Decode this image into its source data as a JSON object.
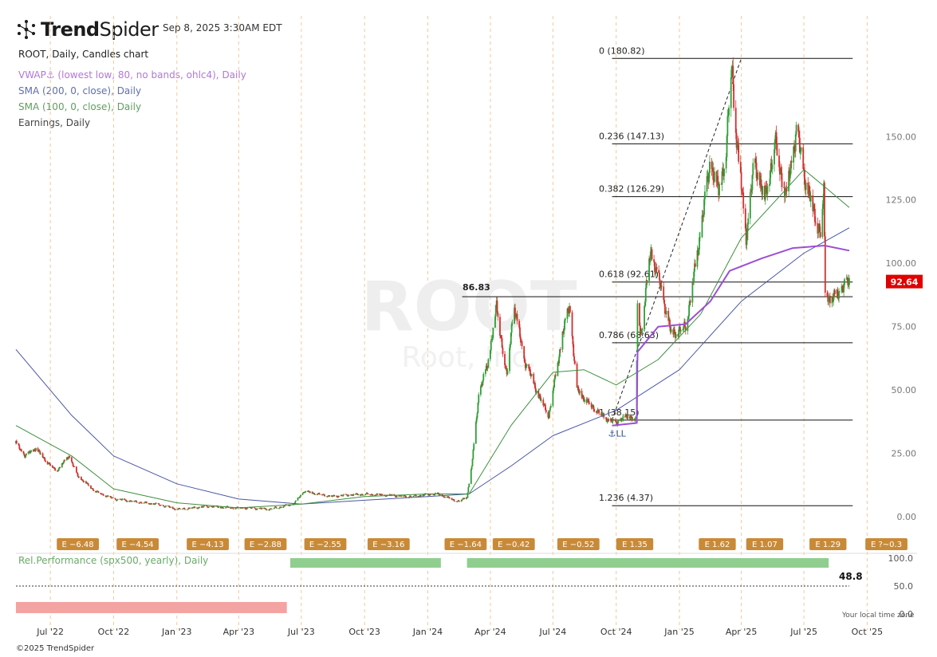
{
  "brand": {
    "name_bold": "Trend",
    "name_regular": "Spider",
    "timestamp": "Sep 8, 2025 3:30AM EDT",
    "copyright": "©2025 TrendSpider"
  },
  "legend": {
    "chart_title": "ROOT, Daily, Candles chart",
    "vwap": "VWAP⚓ (lowest low, 80, no bands, ohlc4), Daily",
    "sma200": "SMA (200, 0, close), Daily",
    "sma100": "SMA (100, 0, close), Daily",
    "earnings": "Earnings, Daily"
  },
  "colors": {
    "up": "#2e9e35",
    "down": "#d32f2f",
    "vwap": "#9b4fd6",
    "sma200": "#4a56a6",
    "sma100": "#3f8f3f",
    "earnings_badge": "#c98a37",
    "last_price": "#e00000",
    "rel_perf_pos": "#8fce8f",
    "rel_perf_neg": "#f4a3a3"
  },
  "watermark": {
    "symbol": "ROOT",
    "name": "Root, Inc."
  },
  "chart_data": {
    "type": "candlestick",
    "symbol": "ROOT",
    "interval": "Daily",
    "x_tick_labels": [
      "Jul '22",
      "Oct '22",
      "Jan '23",
      "Apr '23",
      "Jul '23",
      "Oct '23",
      "Jan '24",
      "Apr '24",
      "Jul '24",
      "Oct '24",
      "Jan '25",
      "Apr '25",
      "Jul '25",
      "Oct '25"
    ],
    "x_tick_dates": [
      "2022-07-01",
      "2022-10-01",
      "2023-01-01",
      "2023-04-01",
      "2023-07-01",
      "2023-10-01",
      "2024-01-01",
      "2024-04-01",
      "2024-07-01",
      "2024-10-01",
      "2025-01-01",
      "2025-04-01",
      "2025-07-01",
      "2025-10-01"
    ],
    "y_tick_labels": [
      "0.00",
      "25.00",
      "50.00",
      "75.00",
      "100.00",
      "125.00",
      "150.00"
    ],
    "y_ticks": [
      0,
      25,
      50,
      75,
      100,
      125,
      150
    ],
    "ylim": [
      -5,
      185
    ],
    "xlim": [
      "2022-05-12",
      "2025-11-02"
    ],
    "last_price": 92.64,
    "last_price_label": "92.64",
    "price_path": [
      {
        "date": "2022-05-12",
        "close": 29
      },
      {
        "date": "2022-05-25",
        "close": 24
      },
      {
        "date": "2022-06-10",
        "close": 27
      },
      {
        "date": "2022-06-25",
        "close": 22
      },
      {
        "date": "2022-07-10",
        "close": 18
      },
      {
        "date": "2022-07-28",
        "close": 24
      },
      {
        "date": "2022-08-10",
        "close": 16
      },
      {
        "date": "2022-09-05",
        "close": 10
      },
      {
        "date": "2022-10-01",
        "close": 7
      },
      {
        "date": "2022-11-01",
        "close": 6
      },
      {
        "date": "2022-12-01",
        "close": 5
      },
      {
        "date": "2023-01-01",
        "close": 3
      },
      {
        "date": "2023-02-15",
        "close": 4
      },
      {
        "date": "2023-04-01",
        "close": 3.5
      },
      {
        "date": "2023-05-15",
        "close": 3
      },
      {
        "date": "2023-06-20",
        "close": 5
      },
      {
        "date": "2023-07-05",
        "close": 10
      },
      {
        "date": "2023-08-15",
        "close": 8
      },
      {
        "date": "2023-10-01",
        "close": 9
      },
      {
        "date": "2023-12-01",
        "close": 8
      },
      {
        "date": "2024-01-15",
        "close": 9
      },
      {
        "date": "2024-02-15",
        "close": 6
      },
      {
        "date": "2024-02-27",
        "close": 8
      },
      {
        "date": "2024-03-05",
        "close": 20
      },
      {
        "date": "2024-03-15",
        "close": 48
      },
      {
        "date": "2024-03-28",
        "close": 60
      },
      {
        "date": "2024-04-10",
        "close": 83
      },
      {
        "date": "2024-04-25",
        "close": 55
      },
      {
        "date": "2024-05-05",
        "close": 84
      },
      {
        "date": "2024-05-20",
        "close": 62
      },
      {
        "date": "2024-06-10",
        "close": 48
      },
      {
        "date": "2024-06-25",
        "close": 40
      },
      {
        "date": "2024-07-15",
        "close": 72
      },
      {
        "date": "2024-07-25",
        "close": 83
      },
      {
        "date": "2024-08-05",
        "close": 50
      },
      {
        "date": "2024-08-25",
        "close": 44
      },
      {
        "date": "2024-09-20",
        "close": 38
      },
      {
        "date": "2024-09-30",
        "close": 37
      },
      {
        "date": "2024-10-20",
        "close": 40
      },
      {
        "date": "2024-10-30",
        "close": 38
      },
      {
        "date": "2024-11-01",
        "close": 85
      },
      {
        "date": "2024-11-06",
        "close": 72
      },
      {
        "date": "2024-11-20",
        "close": 105
      },
      {
        "date": "2024-12-05",
        "close": 90
      },
      {
        "date": "2024-12-20",
        "close": 72
      },
      {
        "date": "2025-01-10",
        "close": 75
      },
      {
        "date": "2025-01-25",
        "close": 100
      },
      {
        "date": "2025-02-15",
        "close": 140
      },
      {
        "date": "2025-02-27",
        "close": 128
      },
      {
        "date": "2025-03-10",
        "close": 145
      },
      {
        "date": "2025-03-18",
        "close": 179
      },
      {
        "date": "2025-03-25",
        "close": 150
      },
      {
        "date": "2025-04-08",
        "close": 110
      },
      {
        "date": "2025-04-20",
        "close": 140
      },
      {
        "date": "2025-05-05",
        "close": 125
      },
      {
        "date": "2025-05-20",
        "close": 148
      },
      {
        "date": "2025-06-05",
        "close": 126
      },
      {
        "date": "2025-06-20",
        "close": 152
      },
      {
        "date": "2025-07-05",
        "close": 130
      },
      {
        "date": "2025-07-25",
        "close": 112
      },
      {
        "date": "2025-07-30",
        "close": 128
      },
      {
        "date": "2025-08-01",
        "close": 90
      },
      {
        "date": "2025-08-10",
        "close": 85
      },
      {
        "date": "2025-08-25",
        "close": 90
      },
      {
        "date": "2025-09-05",
        "close": 92.64
      }
    ],
    "sma200_path": [
      {
        "date": "2022-05-12",
        "close": 66
      },
      {
        "date": "2022-08-01",
        "close": 40
      },
      {
        "date": "2022-10-01",
        "close": 24
      },
      {
        "date": "2023-01-01",
        "close": 13
      },
      {
        "date": "2023-04-01",
        "close": 7
      },
      {
        "date": "2023-07-01",
        "close": 5
      },
      {
        "date": "2023-10-01",
        "close": 6.5
      },
      {
        "date": "2024-01-01",
        "close": 8
      },
      {
        "date": "2024-03-01",
        "close": 9
      },
      {
        "date": "2024-05-01",
        "close": 20
      },
      {
        "date": "2024-07-01",
        "close": 32
      },
      {
        "date": "2024-10-01",
        "close": 42
      },
      {
        "date": "2025-01-01",
        "close": 58
      },
      {
        "date": "2025-04-01",
        "close": 85
      },
      {
        "date": "2025-07-01",
        "close": 104
      },
      {
        "date": "2025-09-05",
        "close": 114
      }
    ],
    "sma100_path": [
      {
        "date": "2022-05-12",
        "close": 36
      },
      {
        "date": "2022-08-01",
        "close": 24
      },
      {
        "date": "2022-10-01",
        "close": 11
      },
      {
        "date": "2023-01-01",
        "close": 5.5
      },
      {
        "date": "2023-04-01",
        "close": 3.5
      },
      {
        "date": "2023-07-01",
        "close": 5
      },
      {
        "date": "2023-10-01",
        "close": 8
      },
      {
        "date": "2024-01-01",
        "close": 9
      },
      {
        "date": "2024-03-01",
        "close": 9
      },
      {
        "date": "2024-05-01",
        "close": 36
      },
      {
        "date": "2024-07-01",
        "close": 57
      },
      {
        "date": "2024-08-15",
        "close": 58
      },
      {
        "date": "2024-10-01",
        "close": 52
      },
      {
        "date": "2024-12-01",
        "close": 62
      },
      {
        "date": "2025-02-01",
        "close": 80
      },
      {
        "date": "2025-04-01",
        "close": 110
      },
      {
        "date": "2025-06-01",
        "close": 128
      },
      {
        "date": "2025-07-01",
        "close": 137
      },
      {
        "date": "2025-08-01",
        "close": 130
      },
      {
        "date": "2025-09-05",
        "close": 122
      }
    ],
    "vwap_path": [
      {
        "date": "2024-09-25",
        "close": 36
      },
      {
        "date": "2024-10-31",
        "close": 37
      },
      {
        "date": "2024-11-01",
        "close": 65
      },
      {
        "date": "2024-12-01",
        "close": 75
      },
      {
        "date": "2025-01-10",
        "close": 76
      },
      {
        "date": "2025-02-15",
        "close": 85
      },
      {
        "date": "2025-03-15",
        "close": 97
      },
      {
        "date": "2025-05-01",
        "close": 102
      },
      {
        "date": "2025-06-15",
        "close": 106
      },
      {
        "date": "2025-07-31",
        "close": 107
      },
      {
        "date": "2025-09-05",
        "close": 105
      }
    ],
    "fibonacci": {
      "start": "2024-09-25",
      "end": "2025-09-10",
      "levels": [
        {
          "label": "0 (180.82)",
          "price": 180.82
        },
        {
          "label": "0.236 (147.13)",
          "price": 147.13
        },
        {
          "label": "0.382 (126.29)",
          "price": 126.29
        },
        {
          "label": "0.618 (92.61)",
          "price": 92.61
        },
        {
          "label": "0.786 (68.63)",
          "price": 68.63
        },
        {
          "label": "1 (38.15)",
          "price": 38.15
        },
        {
          "label": "1.236 (4.37)",
          "price": 4.37
        }
      ]
    },
    "horizontal_line": {
      "label": "86.83",
      "price": 86.83,
      "start": "2024-02-20"
    },
    "trend_line": {
      "from": {
        "date": "2024-09-25",
        "price": 38.15
      },
      "to": {
        "date": "2025-04-01",
        "price": 180.82
      }
    },
    "anchor_label": {
      "text": "LL",
      "date": "2024-09-24",
      "price": 36
    },
    "earnings": [
      {
        "date": "2022-08-10",
        "label": "E −6.48"
      },
      {
        "date": "2022-11-05",
        "label": "E −4.54"
      },
      {
        "date": "2023-02-15",
        "label": "E −4.13"
      },
      {
        "date": "2023-05-10",
        "label": "E −2.88"
      },
      {
        "date": "2023-08-05",
        "label": "E −2.55"
      },
      {
        "date": "2023-11-05",
        "label": "E −3.16"
      },
      {
        "date": "2024-02-25",
        "label": "E −1.64"
      },
      {
        "date": "2024-05-05",
        "label": "E −0.42"
      },
      {
        "date": "2024-08-07",
        "label": "E −0.52"
      },
      {
        "date": "2024-10-28",
        "label": "E 1.35"
      },
      {
        "date": "2025-02-25",
        "label": "E 1.62"
      },
      {
        "date": "2025-05-05",
        "label": "E 1.07"
      },
      {
        "date": "2025-08-05",
        "label": "E 1.29"
      },
      {
        "date": "2025-10-29",
        "label": "E ?~0.3"
      }
    ],
    "rel_performance": {
      "label": "Rel.Performance (spx500, yearly), Daily",
      "current": 48.8,
      "current_label": "48.8",
      "ylim": [
        0,
        100
      ],
      "y_tick_labels": [
        "100.0",
        "50.0",
        "0.0"
      ],
      "y_ticks": [
        100,
        50,
        0
      ],
      "segments": [
        {
          "from": "2022-05-12",
          "to": "2023-06-10",
          "value": -100,
          "sign": "negative"
        },
        {
          "from": "2023-06-15",
          "to": "2024-01-20",
          "value": 100,
          "sign": "positive"
        },
        {
          "from": "2024-02-27",
          "to": "2025-08-06",
          "value": 100,
          "sign": "positive"
        }
      ],
      "footnote": "Your local time zone"
    }
  }
}
